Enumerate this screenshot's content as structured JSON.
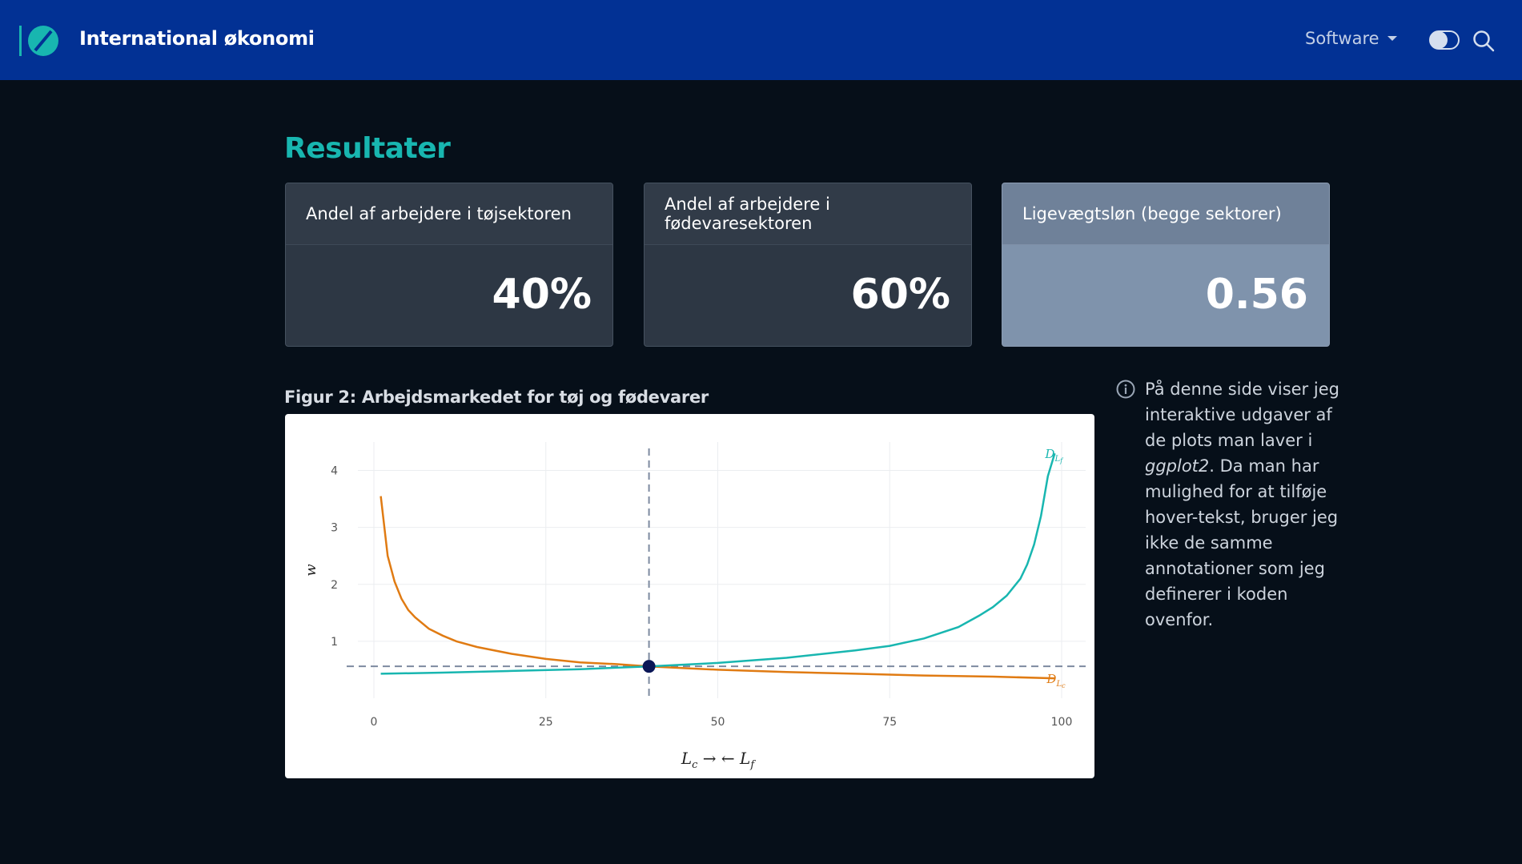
{
  "navbar": {
    "brand": "International økonomi",
    "software_label": "Software",
    "logo_icon": "quarto-logo-icon",
    "toggle_icon": "dark-mode-toggle-icon",
    "search_icon": "search-icon",
    "colors": {
      "background": "#023194",
      "accent": "#18b6b0"
    }
  },
  "page": {
    "title": "Resultater"
  },
  "cards": [
    {
      "title": "Andel af arbejdere i tøjsektoren",
      "value": "40%"
    },
    {
      "title": "Andel af arbejdere i fødevaresektoren",
      "value": "60%"
    },
    {
      "title": "Ligevægtsløn (begge sektorer)",
      "value": "0.56"
    }
  ],
  "figure": {
    "caption": "Figur 2: Arbejdsmarkedet for tøj og fødevarer"
  },
  "aside": {
    "before": "På denne side viser jeg interaktive udgaver af de plots man laver i ",
    "em": "ggplot2",
    "after": ". Da man har mulighed for at tilføje hover-tekst, bruger jeg ikke de samme annotationer som jeg definerer i koden ovenfor.",
    "icon": "info-icon"
  },
  "chart_data": {
    "type": "line",
    "xlabel": "Lc →   ← Lf",
    "ylabel": "w",
    "xlim": [
      0,
      100
    ],
    "ylim": [
      0,
      4.5
    ],
    "xticks": [
      0,
      25,
      50,
      75,
      100
    ],
    "yticks": [
      1,
      2,
      3,
      4
    ],
    "grid": true,
    "series": [
      {
        "name": "D_Lc",
        "color": "#e07b13",
        "x": [
          1,
          2,
          3,
          4,
          5,
          6,
          8,
          10,
          12,
          15,
          20,
          25,
          30,
          35,
          40,
          50,
          60,
          70,
          80,
          90,
          99
        ],
        "y": [
          3.55,
          2.5,
          2.05,
          1.75,
          1.55,
          1.42,
          1.22,
          1.1,
          1.0,
          0.9,
          0.78,
          0.69,
          0.63,
          0.6,
          0.56,
          0.5,
          0.46,
          0.43,
          0.4,
          0.38,
          0.35
        ]
      },
      {
        "name": "D_Lf",
        "color": "#18b6b0",
        "x": [
          1,
          10,
          20,
          30,
          40,
          50,
          60,
          70,
          75,
          80,
          85,
          88,
          90,
          92,
          94,
          95,
          96,
          97,
          98,
          99
        ],
        "y": [
          0.43,
          0.45,
          0.48,
          0.51,
          0.56,
          0.62,
          0.71,
          0.84,
          0.92,
          1.05,
          1.25,
          1.45,
          1.6,
          1.8,
          2.1,
          2.35,
          2.7,
          3.2,
          3.9,
          4.3
        ]
      }
    ],
    "equilibrium": {
      "x": 40,
      "y": 0.56
    },
    "reference_lines": {
      "vertical_x": 40,
      "horizontal_y": 0.56
    }
  }
}
